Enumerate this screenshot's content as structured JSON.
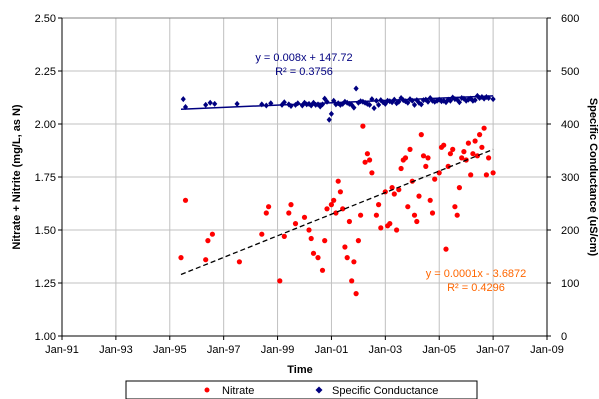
{
  "chart_data": {
    "type": "scatter",
    "xlabel": "Time",
    "ylabel_left": "Nitrate + Nitrite (mg/L, as N)",
    "ylabel_right": "Specific Conductance (uS/cm)",
    "x_range": [
      "1991-01",
      "2009-01"
    ],
    "x_ticks": [
      "Jan-91",
      "Jan-93",
      "Jan-95",
      "Jan-97",
      "Jan-99",
      "Jan-01",
      "Jan-03",
      "Jan-05",
      "Jan-07",
      "Jan-09"
    ],
    "ylim_left": [
      1.0,
      2.5
    ],
    "yticks_left": [
      "1.00",
      "1.25",
      "1.50",
      "1.75",
      "2.00",
      "2.25",
      "2.50"
    ],
    "ylim_right": [
      0,
      600
    ],
    "yticks_right": [
      "0",
      "100",
      "200",
      "300",
      "400",
      "500",
      "600"
    ],
    "grid": true,
    "legend_position": "bottom",
    "colors": {
      "nitrate": "#ff0000",
      "conductance": "#000080",
      "nitrate_trend": "#000000",
      "conductance_trend": "#000080",
      "nitrate_equation": "#ff6600",
      "conductance_equation": "#000080",
      "grid": "#c0c0c0"
    },
    "series": [
      {
        "name": "Nitrate",
        "axis": "left",
        "marker": "circle",
        "points": [
          [
            "1995-06",
            1.37
          ],
          [
            "1995-08",
            1.64
          ],
          [
            "1996-05",
            1.36
          ],
          [
            "1996-06",
            1.45
          ],
          [
            "1996-08",
            1.48
          ],
          [
            "1997-08",
            1.35
          ],
          [
            "1998-06",
            1.48
          ],
          [
            "1998-08",
            1.58
          ],
          [
            "1998-09",
            1.61
          ],
          [
            "1999-02",
            1.26
          ],
          [
            "1999-04",
            1.47
          ],
          [
            "1999-06",
            1.58
          ],
          [
            "1999-07",
            1.62
          ],
          [
            "1999-09",
            1.53
          ],
          [
            "2000-01",
            1.56
          ],
          [
            "2000-03",
            1.5
          ],
          [
            "2000-04",
            1.46
          ],
          [
            "2000-05",
            1.39
          ],
          [
            "2000-07",
            1.37
          ],
          [
            "2000-09",
            1.31
          ],
          [
            "2000-10",
            1.45
          ],
          [
            "2000-11",
            1.6
          ],
          [
            "2001-01",
            1.62
          ],
          [
            "2001-02",
            1.64
          ],
          [
            "2001-03",
            1.58
          ],
          [
            "2001-04",
            1.73
          ],
          [
            "2001-05",
            1.68
          ],
          [
            "2001-06",
            1.6
          ],
          [
            "2001-07",
            1.42
          ],
          [
            "2001-08",
            1.37
          ],
          [
            "2001-09",
            1.54
          ],
          [
            "2001-10",
            1.26
          ],
          [
            "2001-11",
            1.35
          ],
          [
            "2001-12",
            1.2
          ],
          [
            "2002-01",
            1.45
          ],
          [
            "2002-02",
            1.57
          ],
          [
            "2002-03",
            1.99
          ],
          [
            "2002-04",
            1.82
          ],
          [
            "2002-05",
            1.86
          ],
          [
            "2002-06",
            1.83
          ],
          [
            "2002-07",
            1.77
          ],
          [
            "2002-09",
            1.57
          ],
          [
            "2002-10",
            1.62
          ],
          [
            "2002-11",
            1.51
          ],
          [
            "2003-01",
            1.68
          ],
          [
            "2003-02",
            1.52
          ],
          [
            "2003-03",
            1.53
          ],
          [
            "2003-04",
            1.7
          ],
          [
            "2003-05",
            1.67
          ],
          [
            "2003-06",
            1.5
          ],
          [
            "2003-07",
            1.69
          ],
          [
            "2003-08",
            1.79
          ],
          [
            "2003-09",
            1.83
          ],
          [
            "2003-10",
            1.84
          ],
          [
            "2003-11",
            1.61
          ],
          [
            "2003-12",
            1.88
          ],
          [
            "2004-01",
            1.73
          ],
          [
            "2004-02",
            1.57
          ],
          [
            "2004-03",
            1.54
          ],
          [
            "2004-04",
            1.66
          ],
          [
            "2004-05",
            1.95
          ],
          [
            "2004-06",
            1.85
          ],
          [
            "2004-07",
            1.8
          ],
          [
            "2004-08",
            1.84
          ],
          [
            "2004-09",
            1.64
          ],
          [
            "2004-10",
            1.58
          ],
          [
            "2004-11",
            1.74
          ],
          [
            "2005-01",
            1.77
          ],
          [
            "2005-02",
            1.89
          ],
          [
            "2005-03",
            1.9
          ],
          [
            "2005-04",
            1.41
          ],
          [
            "2005-05",
            1.8
          ],
          [
            "2005-06",
            1.86
          ],
          [
            "2005-07",
            1.88
          ],
          [
            "2005-08",
            1.61
          ],
          [
            "2005-09",
            1.57
          ],
          [
            "2005-10",
            1.7
          ],
          [
            "2005-11",
            1.84
          ],
          [
            "2005-12",
            1.87
          ],
          [
            "2006-01",
            1.83
          ],
          [
            "2006-02",
            1.91
          ],
          [
            "2006-03",
            1.76
          ],
          [
            "2006-04",
            1.86
          ],
          [
            "2006-05",
            1.92
          ],
          [
            "2006-06",
            1.85
          ],
          [
            "2006-07",
            1.95
          ],
          [
            "2006-08",
            1.89
          ],
          [
            "2006-09",
            1.98
          ],
          [
            "2006-10",
            1.76
          ],
          [
            "2006-11",
            1.84
          ],
          [
            "2007-01",
            1.77
          ]
        ]
      },
      {
        "name": "Specific Conductance",
        "axis": "right",
        "marker": "diamond",
        "points": [
          [
            "1995-07",
            447
          ],
          [
            "1995-08",
            432
          ],
          [
            "1996-05",
            436
          ],
          [
            "1996-07",
            440
          ],
          [
            "1996-09",
            438
          ],
          [
            "1997-07",
            438
          ],
          [
            "1998-06",
            437
          ],
          [
            "1998-08",
            435
          ],
          [
            "1998-10",
            439
          ],
          [
            "1999-03",
            436
          ],
          [
            "1999-04",
            441
          ],
          [
            "1999-06",
            437
          ],
          [
            "1999-07",
            434
          ],
          [
            "1999-09",
            436
          ],
          [
            "1999-10",
            439
          ],
          [
            "1999-12",
            435
          ],
          [
            "2000-01",
            440
          ],
          [
            "2000-02",
            437
          ],
          [
            "2000-03",
            438
          ],
          [
            "2000-04",
            435
          ],
          [
            "2000-05",
            440
          ],
          [
            "2000-06",
            436
          ],
          [
            "2000-07",
            437
          ],
          [
            "2000-08",
            433
          ],
          [
            "2000-09",
            437
          ],
          [
            "2000-10",
            448
          ],
          [
            "2000-11",
            442
          ],
          [
            "2000-12",
            408
          ],
          [
            "2001-01",
            419
          ],
          [
            "2001-02",
            444
          ],
          [
            "2001-03",
            437
          ],
          [
            "2001-04",
            439
          ],
          [
            "2001-05",
            436
          ],
          [
            "2001-06",
            438
          ],
          [
            "2001-07",
            442
          ],
          [
            "2001-08",
            440
          ],
          [
            "2001-09",
            438
          ],
          [
            "2001-10",
            436
          ],
          [
            "2001-11",
            431
          ],
          [
            "2001-12",
            467
          ],
          [
            "2002-01",
            440
          ],
          [
            "2002-02",
            443
          ],
          [
            "2002-03",
            442
          ],
          [
            "2002-04",
            440
          ],
          [
            "2002-05",
            438
          ],
          [
            "2002-06",
            436
          ],
          [
            "2002-07",
            447
          ],
          [
            "2002-08",
            430
          ],
          [
            "2002-09",
            444
          ],
          [
            "2002-10",
            436
          ],
          [
            "2002-11",
            445
          ],
          [
            "2002-12",
            441
          ],
          [
            "2003-01",
            438
          ],
          [
            "2003-02",
            444
          ],
          [
            "2003-03",
            443
          ],
          [
            "2003-04",
            441
          ],
          [
            "2003-05",
            446
          ],
          [
            "2003-06",
            439
          ],
          [
            "2003-07",
            442
          ],
          [
            "2003-08",
            449
          ],
          [
            "2003-09",
            445
          ],
          [
            "2003-10",
            443
          ],
          [
            "2003-11",
            440
          ],
          [
            "2003-12",
            447
          ],
          [
            "2004-01",
            444
          ],
          [
            "2004-02",
            436
          ],
          [
            "2004-03",
            445
          ],
          [
            "2004-04",
            440
          ],
          [
            "2004-05",
            437
          ],
          [
            "2004-06",
            445
          ],
          [
            "2004-07",
            446
          ],
          [
            "2004-08",
            442
          ],
          [
            "2004-09",
            449
          ],
          [
            "2004-10",
            444
          ],
          [
            "2004-11",
            442
          ],
          [
            "2004-12",
            444
          ],
          [
            "2005-01",
            446
          ],
          [
            "2005-02",
            443
          ],
          [
            "2005-03",
            444
          ],
          [
            "2005-04",
            441
          ],
          [
            "2005-05",
            446
          ],
          [
            "2005-06",
            444
          ],
          [
            "2005-07",
            450
          ],
          [
            "2005-08",
            447
          ],
          [
            "2005-09",
            446
          ],
          [
            "2005-10",
            441
          ],
          [
            "2005-11",
            449
          ],
          [
            "2005-12",
            448
          ],
          [
            "2006-01",
            444
          ],
          [
            "2006-02",
            446
          ],
          [
            "2006-03",
            448
          ],
          [
            "2006-04",
            444
          ],
          [
            "2006-05",
            445
          ],
          [
            "2006-06",
            453
          ],
          [
            "2006-07",
            449
          ],
          [
            "2006-08",
            451
          ],
          [
            "2006-09",
            448
          ],
          [
            "2006-10",
            451
          ],
          [
            "2006-11",
            449
          ],
          [
            "2007-01",
            447
          ]
        ]
      }
    ],
    "trendlines": [
      {
        "series": "Nitrate",
        "axis": "left",
        "style": "dashed",
        "from": [
          "1995-06",
          1.29
        ],
        "to": [
          "2007-01",
          1.88
        ],
        "equation": "y = 0.0001x  - 3.6872",
        "r2": "R² = 0.4296"
      },
      {
        "series": "Specific Conductance",
        "axis": "right",
        "style": "solid",
        "from": [
          "1995-06",
          428
        ],
        "to": [
          "2007-01",
          453
        ],
        "equation": "y = 0.008x + 147.72",
        "r2": "R² = 0.3756"
      }
    ]
  },
  "legend": {
    "items": [
      {
        "label": "Nitrate"
      },
      {
        "label": "Specific Conductance"
      }
    ]
  }
}
